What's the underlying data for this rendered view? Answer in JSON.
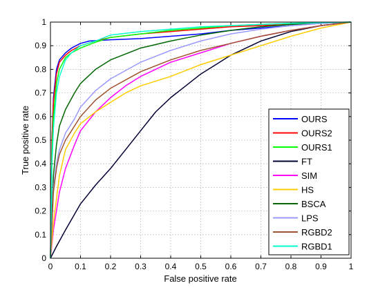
{
  "chart_data": {
    "type": "line",
    "title": "",
    "xlabel": "False positive rate",
    "ylabel": "True positive rate",
    "xlim": [
      0,
      1
    ],
    "ylim": [
      0,
      1
    ],
    "xticks": [
      "0",
      "0.1",
      "0.2",
      "0.3",
      "0.4",
      "0.5",
      "0.6",
      "0.7",
      "0.8",
      "0.9",
      "1"
    ],
    "yticks": [
      "0",
      "0.1",
      "0.2",
      "0.3",
      "0.4",
      "0.5",
      "0.6",
      "0.7",
      "0.8",
      "0.9",
      "1"
    ],
    "grid": true,
    "legend_position": "bottom-right",
    "series": [
      {
        "name": "OURS",
        "color": "#0000ff",
        "x": [
          0,
          0.005,
          0.01,
          0.02,
          0.03,
          0.05,
          0.07,
          0.1,
          0.13,
          0.2,
          0.3,
          0.4,
          0.5,
          0.6,
          0.7,
          0.8,
          0.9,
          1
        ],
        "y": [
          0,
          0.5,
          0.68,
          0.8,
          0.84,
          0.87,
          0.89,
          0.91,
          0.92,
          0.925,
          0.93,
          0.94,
          0.95,
          0.965,
          0.975,
          0.985,
          0.995,
          1
        ]
      },
      {
        "name": "OURS2",
        "color": "#ff0000",
        "x": [
          0,
          0.005,
          0.01,
          0.02,
          0.03,
          0.05,
          0.07,
          0.1,
          0.15,
          0.2,
          0.3,
          0.4,
          0.5,
          0.6,
          0.7,
          0.8,
          0.9,
          1
        ],
        "y": [
          0,
          0.5,
          0.66,
          0.78,
          0.83,
          0.86,
          0.88,
          0.9,
          0.92,
          0.935,
          0.95,
          0.96,
          0.97,
          0.98,
          0.985,
          0.99,
          0.995,
          1
        ]
      },
      {
        "name": "OURS1",
        "color": "#00ff00",
        "x": [
          0,
          0.005,
          0.01,
          0.02,
          0.03,
          0.05,
          0.07,
          0.1,
          0.15,
          0.2,
          0.3,
          0.4,
          0.5,
          0.6,
          0.7,
          0.8,
          0.9,
          1
        ],
        "y": [
          0,
          0.45,
          0.6,
          0.74,
          0.8,
          0.85,
          0.87,
          0.89,
          0.915,
          0.935,
          0.95,
          0.965,
          0.975,
          0.985,
          0.99,
          0.995,
          0.998,
          1
        ]
      },
      {
        "name": "FT",
        "color": "#000033",
        "x": [
          0,
          0.02,
          0.05,
          0.1,
          0.15,
          0.2,
          0.25,
          0.3,
          0.35,
          0.4,
          0.45,
          0.5,
          0.55,
          0.6,
          0.7,
          0.8,
          0.9,
          1
        ],
        "y": [
          0,
          0.05,
          0.12,
          0.23,
          0.31,
          0.38,
          0.46,
          0.54,
          0.62,
          0.68,
          0.73,
          0.78,
          0.82,
          0.86,
          0.92,
          0.96,
          0.985,
          1
        ]
      },
      {
        "name": "SIM",
        "color": "#ff00ff",
        "x": [
          0,
          0.01,
          0.03,
          0.05,
          0.08,
          0.1,
          0.15,
          0.2,
          0.25,
          0.3,
          0.4,
          0.5,
          0.6,
          0.7,
          0.8,
          0.9,
          1
        ],
        "y": [
          0,
          0.12,
          0.28,
          0.38,
          0.48,
          0.54,
          0.62,
          0.68,
          0.73,
          0.77,
          0.83,
          0.87,
          0.91,
          0.94,
          0.965,
          0.985,
          1
        ]
      },
      {
        "name": "HS",
        "color": "#ffcc00",
        "x": [
          0,
          0.01,
          0.03,
          0.05,
          0.08,
          0.1,
          0.15,
          0.2,
          0.25,
          0.3,
          0.4,
          0.5,
          0.6,
          0.7,
          0.8,
          0.9,
          1
        ],
        "y": [
          0,
          0.15,
          0.35,
          0.46,
          0.53,
          0.57,
          0.62,
          0.66,
          0.7,
          0.73,
          0.77,
          0.82,
          0.86,
          0.9,
          0.94,
          0.975,
          1
        ]
      },
      {
        "name": "BSCA",
        "color": "#006600",
        "x": [
          0,
          0.01,
          0.02,
          0.03,
          0.05,
          0.08,
          0.1,
          0.15,
          0.2,
          0.3,
          0.4,
          0.5,
          0.6,
          0.7,
          0.8,
          0.9,
          1
        ],
        "y": [
          0,
          0.35,
          0.48,
          0.56,
          0.63,
          0.7,
          0.74,
          0.8,
          0.84,
          0.89,
          0.92,
          0.945,
          0.965,
          0.98,
          0.99,
          0.995,
          1
        ]
      },
      {
        "name": "LPS",
        "color": "#9999ff",
        "x": [
          0,
          0.01,
          0.02,
          0.03,
          0.05,
          0.08,
          0.1,
          0.15,
          0.2,
          0.3,
          0.4,
          0.5,
          0.6,
          0.7,
          0.8,
          0.9,
          1
        ],
        "y": [
          0,
          0.3,
          0.4,
          0.46,
          0.53,
          0.59,
          0.64,
          0.71,
          0.76,
          0.83,
          0.88,
          0.92,
          0.95,
          0.97,
          0.985,
          0.995,
          1
        ]
      },
      {
        "name": "RGBD2",
        "color": "#a0522d",
        "x": [
          0,
          0.01,
          0.02,
          0.03,
          0.05,
          0.08,
          0.1,
          0.15,
          0.2,
          0.3,
          0.4,
          0.5,
          0.6,
          0.7,
          0.8,
          0.9,
          1
        ],
        "y": [
          0,
          0.28,
          0.38,
          0.44,
          0.5,
          0.56,
          0.6,
          0.67,
          0.72,
          0.79,
          0.84,
          0.88,
          0.91,
          0.94,
          0.965,
          0.985,
          1
        ]
      },
      {
        "name": "RGBD1",
        "color": "#00ffcc",
        "x": [
          0,
          0.005,
          0.01,
          0.02,
          0.03,
          0.05,
          0.07,
          0.1,
          0.15,
          0.2,
          0.3,
          0.4,
          0.5,
          0.6,
          0.7,
          0.8,
          0.9,
          1
        ],
        "y": [
          0,
          0.4,
          0.55,
          0.7,
          0.77,
          0.84,
          0.87,
          0.9,
          0.92,
          0.945,
          0.96,
          0.97,
          0.98,
          0.985,
          0.99,
          0.995,
          0.998,
          1
        ]
      }
    ]
  }
}
